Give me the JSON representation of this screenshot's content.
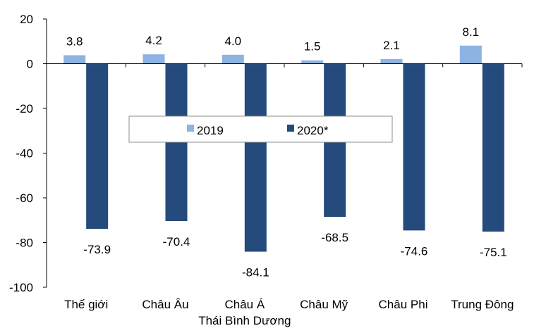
{
  "chart_data": {
    "type": "bar",
    "categories": [
      "Thế giới",
      "Châu Âu",
      "Châu Á\nThái Bình Dương",
      "Châu Mỹ",
      "Châu Phi",
      "Trung Đông"
    ],
    "series": [
      {
        "name": "2019",
        "values": [
          3.8,
          4.2,
          4.0,
          1.5,
          2.1,
          8.1
        ],
        "color": "#8db3e2"
      },
      {
        "name": "2020*",
        "values": [
          -73.9,
          -70.4,
          -84.1,
          -68.5,
          -74.6,
          -75.1
        ],
        "color": "#254a7c"
      }
    ],
    "data_labels": [
      [
        "3.8",
        "4.2",
        "4.0",
        "1.5",
        "2.1",
        "8.1"
      ],
      [
        "-73.9",
        "-70.4",
        "-84.1",
        "-68.5",
        "-74.6",
        "-75.1"
      ]
    ],
    "ylim": [
      -100,
      20
    ],
    "yticks": [
      20,
      0,
      -20,
      -40,
      -60,
      -80,
      -100
    ],
    "ytick_labels": [
      "20",
      "0",
      "-20",
      "-40",
      "-60",
      "-80",
      "-100"
    ],
    "grid": false,
    "legend": {
      "placement": "center",
      "entries": [
        "2019",
        "2020*"
      ]
    },
    "title": "",
    "xlabel": "",
    "ylabel": ""
  }
}
